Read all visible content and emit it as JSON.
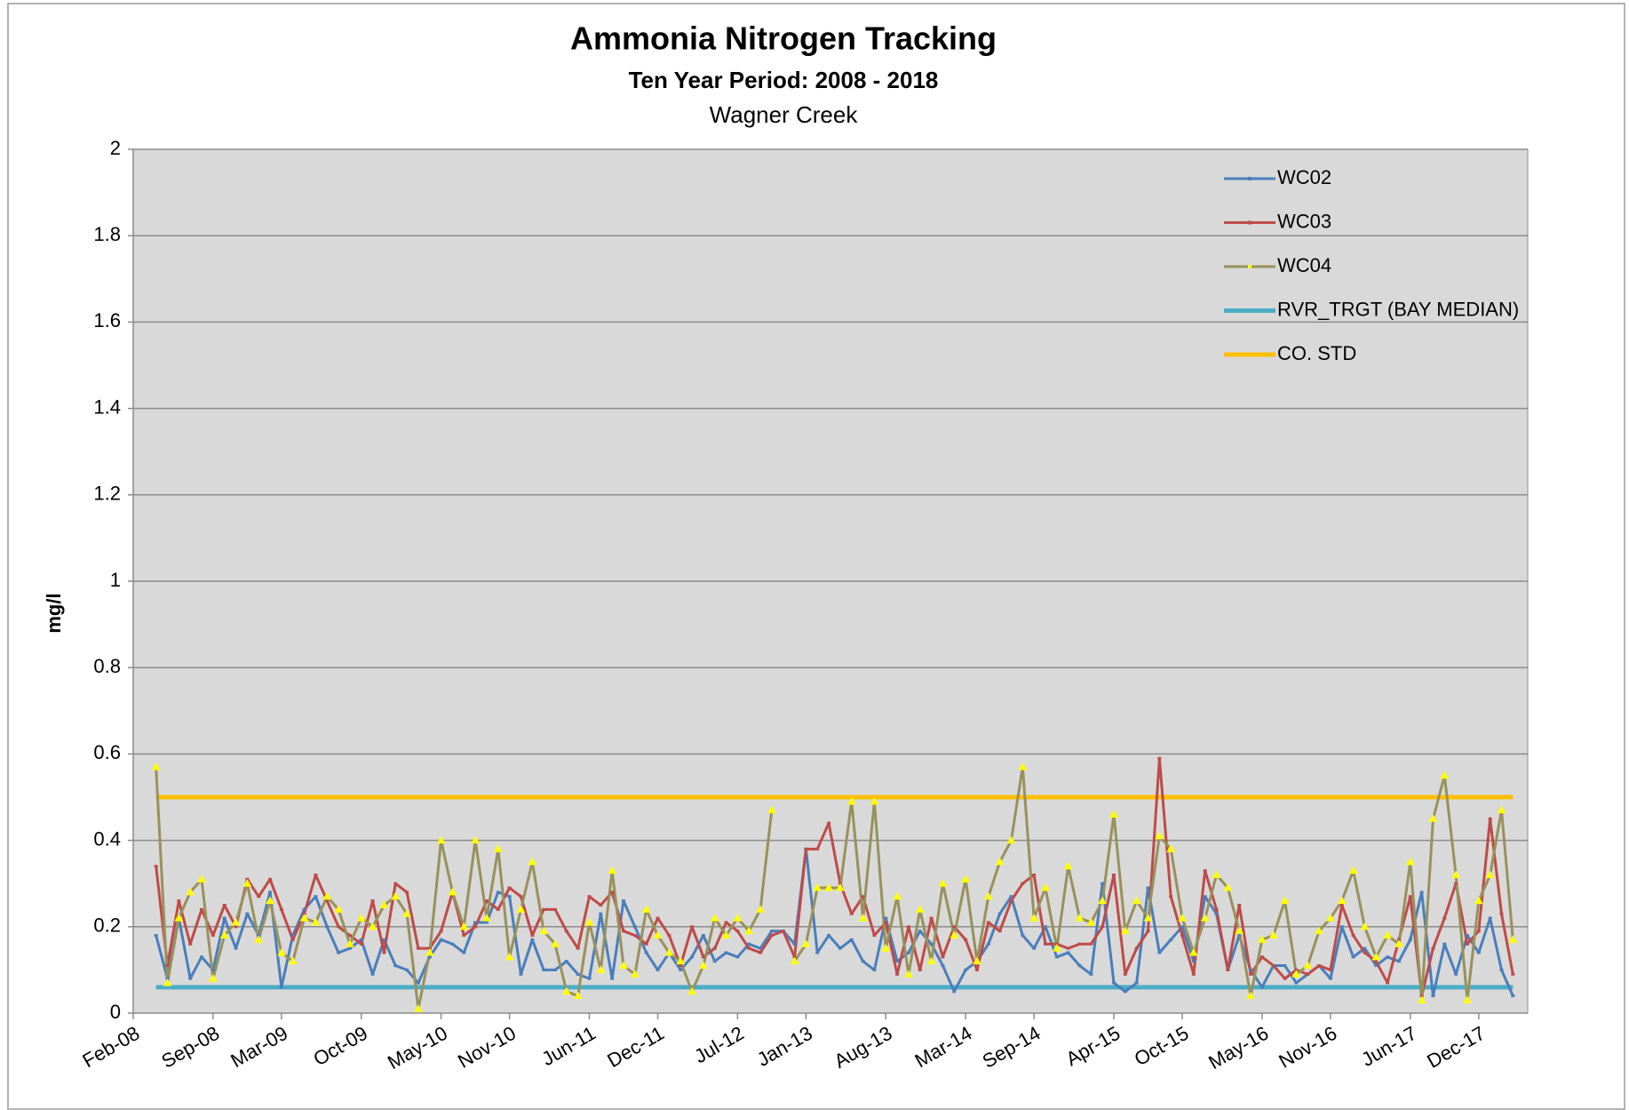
{
  "chart_data": {
    "type": "line",
    "title": "Ammonia Nitrogen Tracking",
    "subtitle": "Ten Year Period:  2008 - 2018",
    "location": "Wagner Creek",
    "y_label": "mg/l",
    "ylim": [
      0,
      2
    ],
    "yticks": [
      0,
      0.2,
      0.4,
      0.6,
      0.8,
      1,
      1.2,
      1.4,
      1.6,
      1.8,
      2
    ],
    "grid": true,
    "legend": "upper right",
    "categories": [
      "Feb-08",
      null,
      null,
      null,
      null,
      null,
      null,
      "Sep-08",
      null,
      null,
      null,
      null,
      null,
      "Mar-09",
      null,
      null,
      null,
      null,
      null,
      null,
      "Oct-09",
      null,
      null,
      null,
      null,
      null,
      null,
      "May-10",
      null,
      null,
      null,
      null,
      null,
      "Nov-10",
      null,
      null,
      null,
      null,
      null,
      null,
      "Jun-11",
      null,
      null,
      null,
      null,
      null,
      "Dec-11",
      null,
      null,
      null,
      null,
      null,
      null,
      "Jul-12",
      null,
      null,
      null,
      null,
      null,
      "Jan-13",
      null,
      null,
      null,
      null,
      null,
      null,
      "Aug-13",
      null,
      null,
      null,
      null,
      null,
      null,
      "Mar-14",
      null,
      null,
      null,
      null,
      null,
      "Sep-14",
      null,
      null,
      null,
      null,
      null,
      null,
      "Apr-15",
      null,
      null,
      null,
      null,
      null,
      "Oct-15",
      null,
      null,
      null,
      null,
      null,
      null,
      "May-16",
      null,
      null,
      null,
      null,
      null,
      "Nov-16",
      null,
      null,
      null,
      null,
      null,
      null,
      "Jun-17",
      null,
      null,
      null,
      null,
      null,
      "Dec-17",
      null,
      null,
      null
    ],
    "series": [
      {
        "name": "WC02",
        "color": "#4a7ebb",
        "marker": "dash",
        "values": [
          null,
          null,
          0.18,
          0.08,
          0.22,
          0.08,
          0.13,
          0.1,
          0.22,
          0.15,
          0.23,
          0.18,
          0.28,
          0.06,
          0.18,
          0.24,
          0.27,
          0.2,
          0.14,
          0.15,
          0.17,
          0.09,
          0.17,
          0.11,
          0.1,
          0.07,
          0.13,
          0.17,
          0.16,
          0.14,
          0.21,
          0.21,
          0.28,
          0.27,
          0.09,
          0.17,
          0.1,
          0.1,
          0.12,
          0.09,
          0.08,
          0.23,
          0.08,
          0.26,
          0.2,
          0.14,
          0.1,
          0.14,
          0.1,
          0.13,
          0.18,
          0.12,
          0.14,
          0.13,
          0.16,
          0.15,
          0.19,
          0.19,
          0.16,
          0.38,
          0.14,
          0.18,
          0.15,
          0.17,
          0.12,
          0.1,
          0.22,
          0.12,
          0.14,
          0.19,
          0.16,
          0.11,
          0.05,
          0.1,
          0.12,
          0.16,
          0.23,
          0.27,
          0.18,
          0.15,
          0.2,
          0.13,
          0.14,
          0.11,
          0.09,
          0.3,
          0.07,
          0.05,
          0.07,
          0.29,
          0.14,
          0.17,
          0.2,
          0.12,
          0.27,
          0.23,
          0.1,
          0.18,
          0.1,
          0.06,
          0.11,
          0.11,
          0.07,
          0.09,
          0.11,
          0.08,
          0.2,
          0.13,
          0.15,
          0.11,
          0.13,
          0.12,
          0.17,
          0.28,
          0.04,
          0.16,
          0.09,
          0.18,
          0.14,
          0.22,
          0.1,
          0.04
        ]
      },
      {
        "name": "WC03",
        "color": "#be4b48",
        "marker": "dash",
        "values": [
          null,
          null,
          0.34,
          0.11,
          0.26,
          0.16,
          0.24,
          0.18,
          0.25,
          0.2,
          0.31,
          0.27,
          0.31,
          0.24,
          0.17,
          0.23,
          0.32,
          0.26,
          0.2,
          0.18,
          0.16,
          0.26,
          0.14,
          0.3,
          0.28,
          0.15,
          0.15,
          0.19,
          0.28,
          0.18,
          0.2,
          0.26,
          0.24,
          0.29,
          0.27,
          0.18,
          0.24,
          0.24,
          0.19,
          0.15,
          0.27,
          0.25,
          0.28,
          0.19,
          0.18,
          0.16,
          0.22,
          0.18,
          0.11,
          0.2,
          0.13,
          0.15,
          0.21,
          0.19,
          0.15,
          0.14,
          0.18,
          0.19,
          0.13,
          0.38,
          0.38,
          0.44,
          0.3,
          0.23,
          0.27,
          0.18,
          0.21,
          0.09,
          0.2,
          0.1,
          0.22,
          0.13,
          0.2,
          0.17,
          0.1,
          0.21,
          0.19,
          0.26,
          0.3,
          0.32,
          0.16,
          0.16,
          0.15,
          0.16,
          0.16,
          0.2,
          0.32,
          0.09,
          0.15,
          0.19,
          0.59,
          0.27,
          0.18,
          0.09,
          0.33,
          0.24,
          0.1,
          0.25,
          0.09,
          0.13,
          0.11,
          0.08,
          0.1,
          0.09,
          0.11,
          0.1,
          0.25,
          0.18,
          0.14,
          0.12,
          0.07,
          0.17,
          0.27,
          0.04,
          0.15,
          0.22,
          0.3,
          0.16,
          0.19,
          0.45,
          0.23,
          0.09
        ]
      },
      {
        "name": "WC04",
        "color": "#98915c",
        "marker": "triangle",
        "marker_color": "#ffff00",
        "values": [
          null,
          null,
          0.57,
          0.07,
          0.22,
          0.28,
          0.31,
          0.08,
          0.18,
          0.21,
          0.3,
          0.17,
          0.26,
          0.14,
          0.12,
          0.22,
          0.21,
          0.27,
          0.24,
          0.16,
          0.22,
          0.2,
          0.25,
          0.27,
          0.23,
          0.01,
          0.14,
          0.4,
          0.28,
          0.2,
          0.4,
          0.22,
          0.38,
          0.13,
          0.24,
          0.35,
          0.19,
          0.16,
          0.05,
          0.04,
          0.21,
          0.1,
          0.33,
          0.11,
          0.09,
          0.24,
          0.18,
          0.14,
          0.12,
          0.05,
          0.11,
          0.22,
          0.18,
          0.22,
          0.19,
          0.24,
          0.47,
          null,
          0.12,
          0.16,
          0.29,
          0.29,
          0.29,
          0.49,
          0.22,
          0.49,
          0.15,
          0.27,
          0.09,
          0.24,
          0.12,
          0.3,
          0.18,
          0.31,
          0.12,
          0.27,
          0.35,
          0.4,
          0.57,
          0.22,
          0.29,
          0.15,
          0.34,
          0.22,
          0.21,
          0.26,
          0.46,
          0.19,
          0.26,
          0.22,
          0.41,
          0.38,
          0.22,
          0.14,
          0.22,
          0.32,
          0.29,
          0.19,
          0.04,
          0.17,
          0.18,
          0.26,
          0.09,
          0.11,
          0.19,
          0.22,
          0.26,
          0.33,
          0.2,
          0.13,
          0.18,
          0.16,
          0.35,
          0.03,
          0.45,
          0.55,
          0.32,
          0.03,
          0.26,
          0.32,
          0.47,
          0.17
        ]
      }
    ],
    "reference_lines": [
      {
        "name": "RVR_TRGT (BAY MEDIAN)",
        "color": "#4bacc6",
        "value": 0.06
      },
      {
        "name": "CO. STD",
        "color": "#ffc000",
        "value": 0.5
      }
    ]
  }
}
